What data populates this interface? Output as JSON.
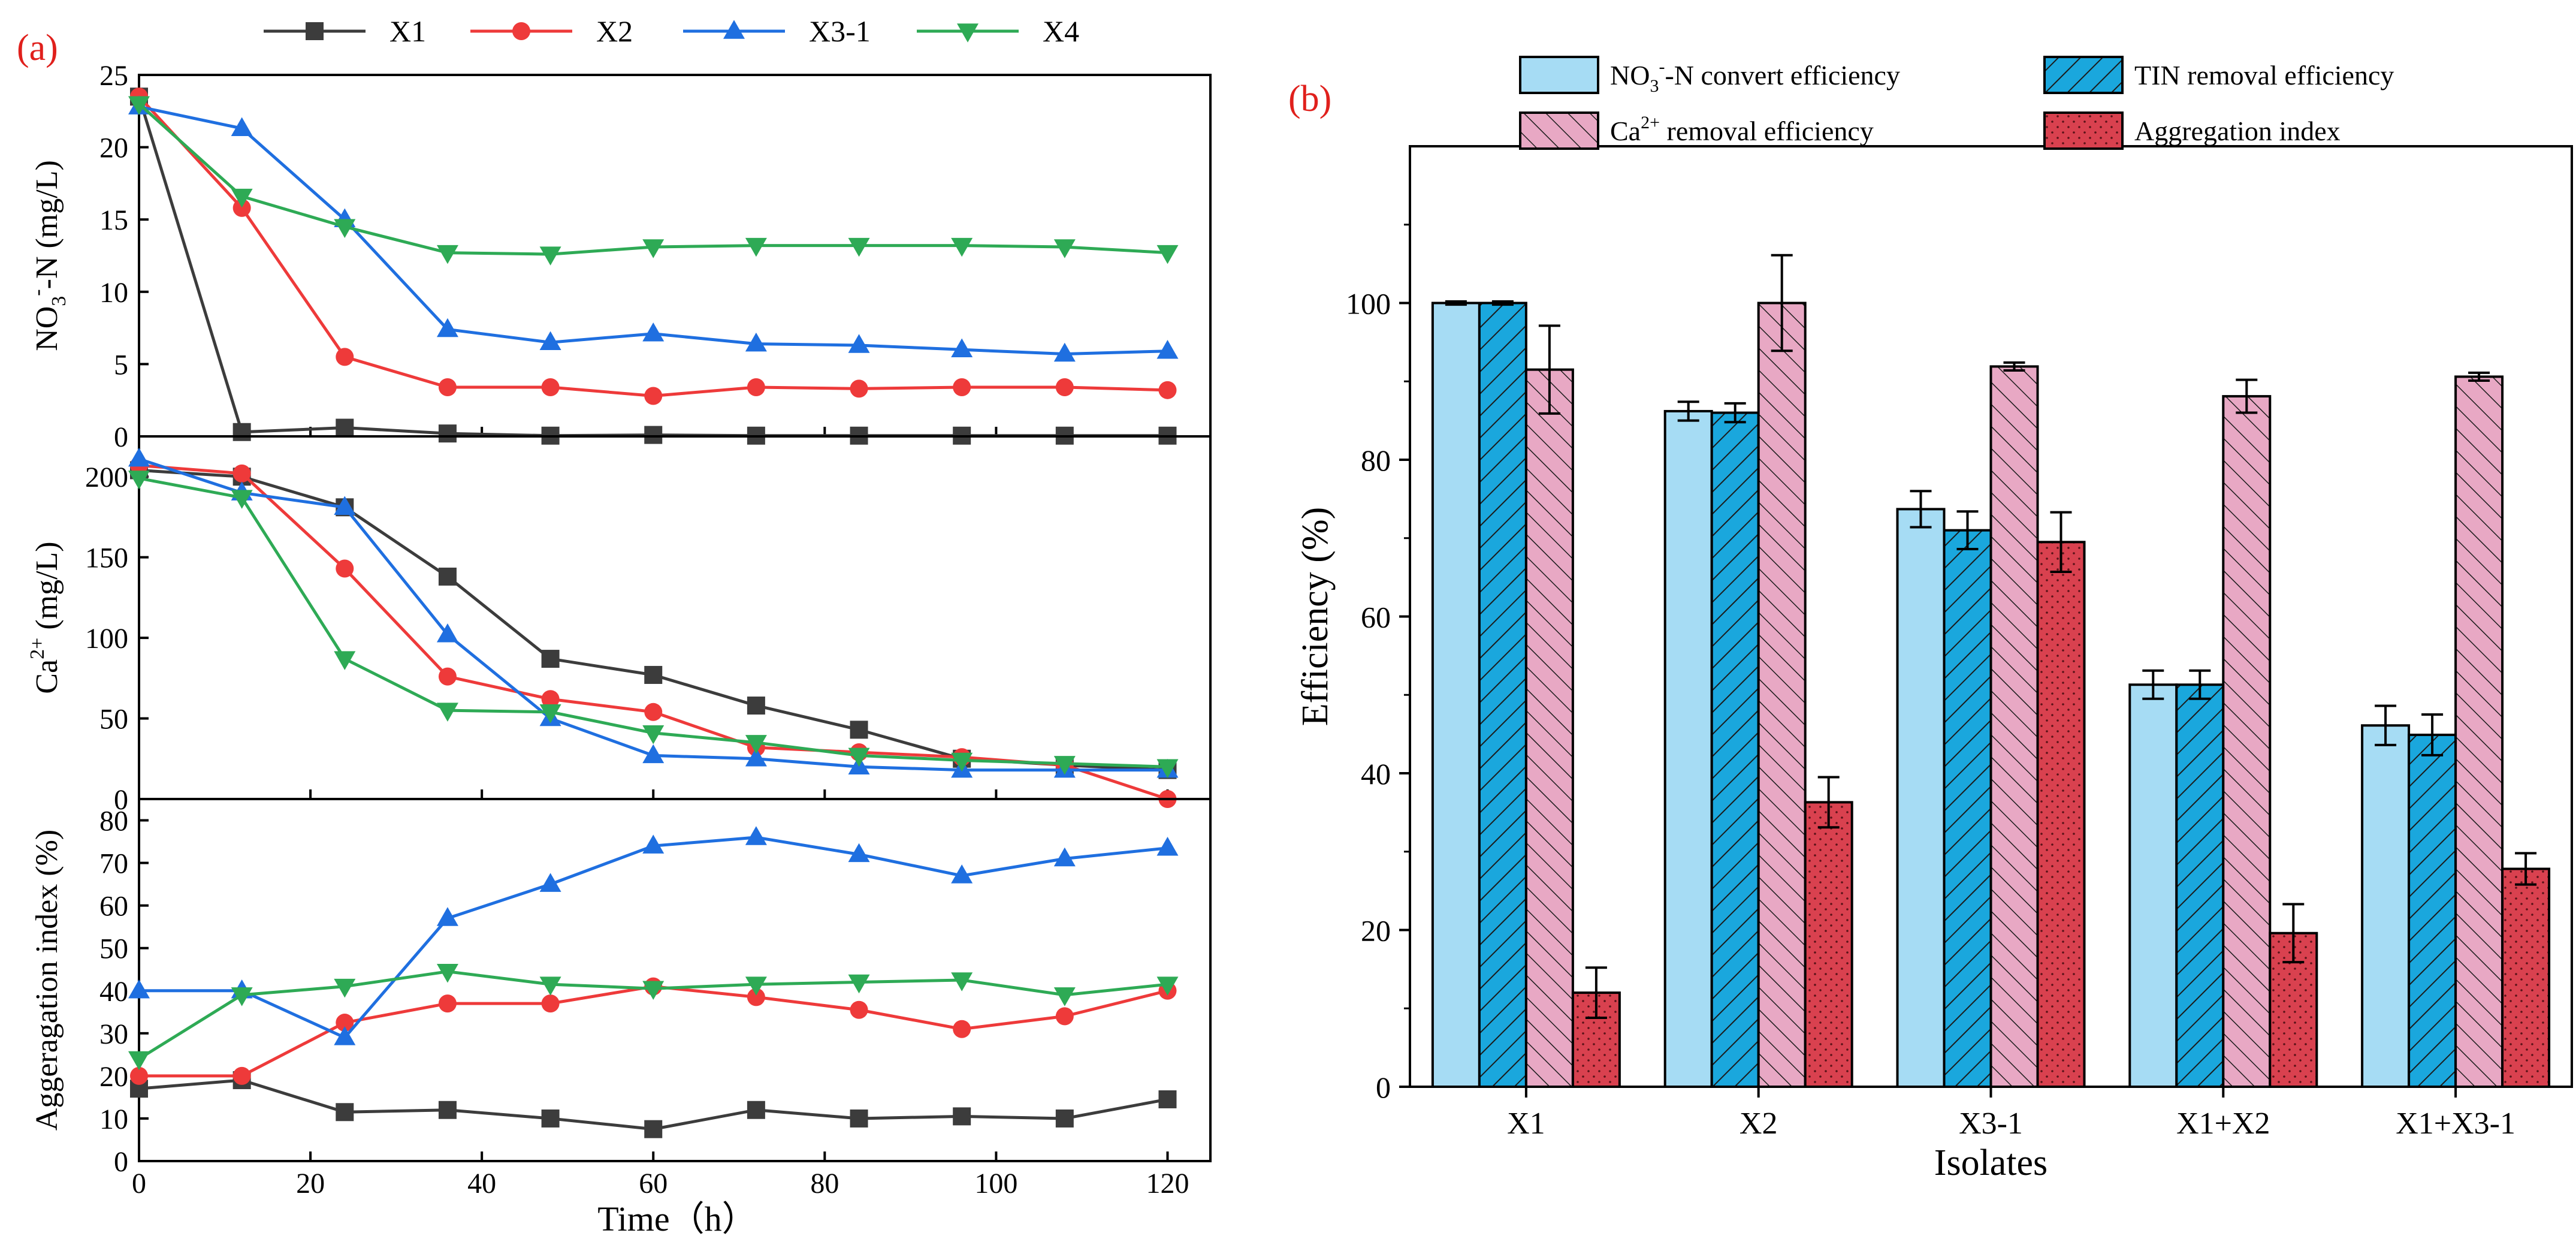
{
  "chart_data": [
    {
      "panel_label": "(a)",
      "type": "line",
      "legend": [
        "X1",
        "X2",
        "X3-1",
        "X4"
      ],
      "xlabel_main": "Time",
      "xlabel_unit": "（h）",
      "x": [
        0,
        12,
        24,
        36,
        48,
        60,
        72,
        84,
        96,
        108,
        120
      ],
      "xlim": [
        0,
        125
      ],
      "xticks": [
        "0",
        "20",
        "40",
        "60",
        "80",
        "100",
        "120"
      ],
      "colors": {
        "X1": "#3c3c3c",
        "X2": "#ee3a3a",
        "X3-1": "#1f6fe0",
        "X4": "#2eaa55"
      },
      "subplots": [
        {
          "ylabel_parts": [
            "NO",
            "3",
            "-",
            "-N (mg/L)"
          ],
          "ylim": [
            0,
            25
          ],
          "yticks": [
            "0",
            "5",
            "10",
            "15",
            "20",
            "25"
          ],
          "series": [
            {
              "name": "X1",
              "values": [
                23.5,
                0.3,
                0.6,
                0.2,
                0.05,
                0.1,
                0.05,
                0.05,
                0.05,
                0.05,
                0.05
              ]
            },
            {
              "name": "X2",
              "values": [
                23.5,
                15.8,
                5.5,
                3.4,
                3.4,
                2.8,
                3.4,
                3.3,
                3.4,
                3.4,
                3.2
              ]
            },
            {
              "name": "X3-1",
              "values": [
                22.8,
                21.3,
                15.0,
                7.4,
                6.5,
                7.1,
                6.4,
                6.3,
                6.0,
                5.7,
                5.9
              ]
            },
            {
              "name": "X4",
              "values": [
                23.0,
                16.6,
                14.5,
                12.7,
                12.6,
                13.1,
                13.2,
                13.2,
                13.2,
                13.1,
                12.7
              ]
            }
          ]
        },
        {
          "ylabel_parts": [
            "Ca",
            "2+",
            "(mg/L)"
          ],
          "ylim": [
            0,
            225
          ],
          "yticks": [
            "0",
            "50",
            "100",
            "150",
            "200"
          ],
          "series": [
            {
              "name": "X1",
              "values": [
                204,
                200,
                181,
                138,
                87,
                77,
                58,
                43,
                25,
                21,
                18
              ]
            },
            {
              "name": "X2",
              "values": [
                207,
                202,
                143,
                76,
                62,
                54,
                32,
                29,
                26,
                21,
                0
              ]
            },
            {
              "name": "X3-1",
              "values": [
                211,
                190,
                181,
                102,
                50,
                27,
                25,
                20,
                18,
                18,
                18
              ]
            },
            {
              "name": "X4",
              "values": [
                199,
                187,
                87,
                55,
                54,
                41,
                35,
                27,
                24,
                22,
                20
              ]
            }
          ]
        },
        {
          "ylabel": "Aggeragation index (%)",
          "ylim": [
            0,
            85
          ],
          "yticks": [
            "0",
            "10",
            "20",
            "30",
            "40",
            "50",
            "60",
            "70",
            "80"
          ],
          "series": [
            {
              "name": "X1",
              "values": [
                17,
                19,
                11.5,
                12,
                10,
                7.5,
                12,
                10,
                10.5,
                10,
                14.5
              ]
            },
            {
              "name": "X2",
              "values": [
                20,
                20,
                32.5,
                37,
                37,
                41,
                38.5,
                35.5,
                31,
                34,
                40
              ]
            },
            {
              "name": "X3-1",
              "values": [
                40,
                40,
                29,
                57,
                65,
                74,
                76,
                72,
                67,
                71,
                73.5
              ]
            },
            {
              "name": "X4",
              "values": [
                24,
                39,
                41,
                44.5,
                41.5,
                40.5,
                41.5,
                42,
                42.5,
                39,
                41.5
              ]
            }
          ]
        }
      ]
    },
    {
      "panel_label": "(b)",
      "type": "bar",
      "title": "",
      "xlabel": "Isolates",
      "ylabel": "Efficiency (%)",
      "ylim": [
        0,
        120
      ],
      "yticks": [
        "0",
        "20",
        "40",
        "60",
        "80",
        "100"
      ],
      "categories": [
        "X1",
        "X2",
        "X3-1",
        "X1+X2",
        "X1+X3-1"
      ],
      "series": [
        {
          "name": "NO3- -N convert efficiency",
          "label_parts": [
            "NO",
            "3",
            "-",
            "-N convert efficiency"
          ],
          "color": "#a6dcf4",
          "pattern": "none",
          "values": [
            100,
            86.2,
            73.7,
            51.3,
            46.1
          ],
          "errors": [
            0.2,
            1.2,
            2.3,
            1.8,
            2.5
          ]
        },
        {
          "name": "TIN removal efficiency",
          "label_parts": [
            "TIN removal efficiency"
          ],
          "color": "#1aa7dd",
          "pattern": "hatch-forward",
          "values": [
            100,
            86.0,
            71.0,
            51.3,
            44.9
          ],
          "errors": [
            0.2,
            1.2,
            2.4,
            1.8,
            2.6
          ]
        },
        {
          "name": "Ca2+ removal efficiency",
          "label_parts": [
            "Ca",
            "2+",
            " removal efficiency"
          ],
          "color": "#e8a8c4",
          "pattern": "hatch-back",
          "values": [
            91.5,
            100,
            91.9,
            88.1,
            90.6
          ],
          "errors": [
            5.6,
            6.1,
            0.5,
            2.1,
            0.5
          ]
        },
        {
          "name": "Aggregation index",
          "label_parts": [
            "Aggregation index"
          ],
          "color": "#d9414f",
          "pattern": "dots",
          "values": [
            12.0,
            36.3,
            69.5,
            19.6,
            27.8
          ],
          "errors": [
            3.2,
            3.2,
            3.8,
            3.7,
            2.0
          ]
        }
      ]
    }
  ]
}
